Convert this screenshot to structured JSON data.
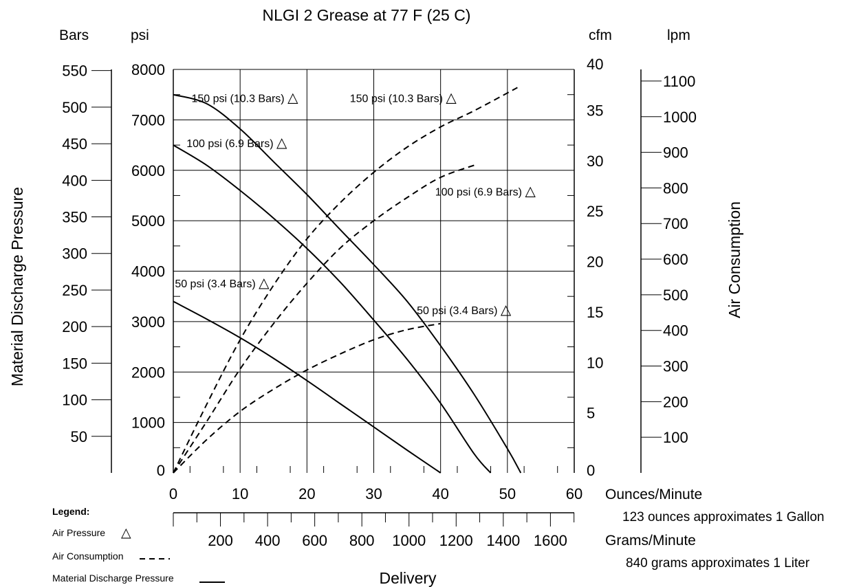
{
  "chart_data": {
    "type": "line",
    "title": "NLGI 2 Grease at 77 F (25 C)",
    "axes": {
      "x_bottom": {
        "label": "Ounces/Minute",
        "range": [
          0,
          60
        ],
        "ticks": [
          "0",
          "10",
          "20",
          "30",
          "40",
          "50",
          "60"
        ],
        "tick_values": [
          0,
          10,
          20,
          30,
          40,
          50,
          60
        ],
        "note": "123 ounces approximates 1 Gallon"
      },
      "x_grams": {
        "label": "Grams/Minute",
        "ticks": [
          "200",
          "400",
          "600",
          "800",
          "1000",
          "1200",
          "1400",
          "1600"
        ],
        "tick_values": [
          200,
          400,
          600,
          800,
          1000,
          1200,
          1400,
          1600
        ],
        "note": "840 grams approximates 1 Liter"
      },
      "delivery_label": "Delivery",
      "y_left": {
        "label": "Material Discharge Pressure",
        "psi_unit": "psi",
        "psi_range": [
          0,
          8000
        ],
        "psi_ticks": [
          "0",
          "1000",
          "2000",
          "3000",
          "4000",
          "5000",
          "6000",
          "7000",
          "8000"
        ],
        "psi_values": [
          0,
          1000,
          2000,
          3000,
          4000,
          5000,
          6000,
          7000,
          8000
        ],
        "bars_unit": "Bars",
        "bars_ticks": [
          "50",
          "100",
          "150",
          "200",
          "250",
          "300",
          "350",
          "400",
          "450",
          "500",
          "550"
        ],
        "bars_values": [
          50,
          100,
          150,
          200,
          250,
          300,
          350,
          400,
          450,
          500,
          550
        ]
      },
      "y_right": {
        "label": "Air Consumption",
        "cfm_unit": "cfm",
        "cfm_range": [
          0,
          40
        ],
        "cfm_ticks": [
          "0",
          "5",
          "10",
          "15",
          "20",
          "25",
          "30",
          "35",
          "40"
        ],
        "cfm_values": [
          0,
          5,
          10,
          15,
          20,
          25,
          30,
          35,
          40
        ],
        "lpm_unit": "lpm",
        "lpm_ticks": [
          "100",
          "200",
          "300",
          "400",
          "500",
          "600",
          "700",
          "800",
          "900",
          "1000",
          "1100"
        ],
        "lpm_values": [
          100,
          200,
          300,
          400,
          500,
          600,
          700,
          800,
          900,
          1000,
          1100
        ]
      }
    },
    "series": [
      {
        "name": "150 psi (10.3 Bars)",
        "kind": "material-discharge-pressure",
        "unit": "psi",
        "x": [
          0,
          5,
          10,
          15,
          20,
          25,
          30,
          35,
          40,
          45,
          50,
          52
        ],
        "y": [
          7500,
          7320,
          6820,
          6170,
          5520,
          4820,
          4130,
          3400,
          2520,
          1560,
          480,
          0
        ]
      },
      {
        "name": "100 psi (6.9 Bars)",
        "kind": "material-discharge-pressure",
        "unit": "psi",
        "x": [
          0,
          5,
          10,
          15,
          20,
          25,
          30,
          35,
          40,
          45,
          47.5
        ],
        "y": [
          6500,
          6100,
          5600,
          5050,
          4450,
          3780,
          3030,
          2250,
          1380,
          380,
          0
        ]
      },
      {
        "name": "50 psi (3.4 Bars)",
        "kind": "material-discharge-pressure",
        "unit": "psi",
        "x": [
          0,
          5,
          10,
          15,
          20,
          25,
          30,
          35,
          40
        ],
        "y": [
          3400,
          3050,
          2680,
          2270,
          1830,
          1370,
          910,
          450,
          0
        ]
      },
      {
        "name": "150 psi (10.3 Bars)",
        "kind": "air-consumption",
        "unit": "cfm",
        "x": [
          0,
          5,
          10,
          15,
          20,
          25,
          30,
          35,
          40,
          45,
          51.5
        ],
        "y": [
          0,
          6.8,
          13.2,
          18.6,
          23.2,
          26.8,
          29.8,
          32.3,
          34.3,
          35.9,
          38.2
        ]
      },
      {
        "name": "100 psi (6.9 Bars)",
        "kind": "air-consumption",
        "unit": "cfm",
        "x": [
          0,
          5,
          10,
          15,
          20,
          25,
          30,
          35,
          40,
          45.5
        ],
        "y": [
          0,
          5.1,
          10.3,
          14.8,
          18.8,
          22.3,
          25.0,
          27.3,
          29.3,
          30.6
        ]
      },
      {
        "name": "50 psi (3.4 Bars)",
        "kind": "air-consumption",
        "unit": "cfm",
        "x": [
          0,
          5,
          10,
          15,
          20,
          25,
          30,
          35,
          40
        ],
        "y": [
          0,
          3.3,
          6.1,
          8.3,
          10.2,
          11.8,
          13.2,
          14.2,
          14.8
        ]
      }
    ],
    "annotations": [
      {
        "text": "150 psi (10.3 Bars)",
        "symbol": "△",
        "x": 10.7,
        "y": 7.35
      },
      {
        "text": "150 psi (10.3 Bars)",
        "symbol": "△",
        "x": 34.4,
        "y": 7.35
      },
      {
        "text": "100 psi (6.9 Bars)",
        "symbol": "△",
        "x": 9.5,
        "y": 6.46
      },
      {
        "text": "100 psi (6.9 Bars)",
        "symbol": "△",
        "x": 46.7,
        "y": 5.5
      },
      {
        "text": "50 psi (3.4 Bars)",
        "symbol": "△",
        "x": 7.3,
        "y": 3.68
      },
      {
        "text": "50 psi (3.4 Bars)",
        "symbol": "△",
        "x": 43.5,
        "y": 3.15
      }
    ],
    "legend": {
      "title": "Legend:",
      "placement": "bottom-left",
      "items": [
        {
          "label": "Air Pressure",
          "symbol": "△"
        },
        {
          "label": "Air Consumption",
          "style": "dashed"
        },
        {
          "label": "Material Discharge Pressure",
          "style": "solid"
        }
      ]
    },
    "grid": true
  }
}
